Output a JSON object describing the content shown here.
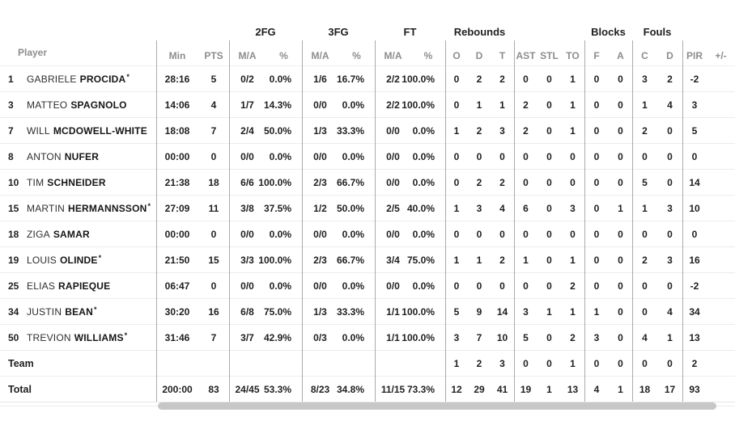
{
  "colors": {
    "text": "#1f1f1f",
    "muted_header": "#8d8d8d",
    "column_separator": "#ababab",
    "row_border": "#ececec",
    "scrollbar_thumb": "#c7c7c7"
  },
  "table": {
    "groups": [
      {
        "label": "2FG"
      },
      {
        "label": "3FG"
      },
      {
        "label": "FT"
      },
      {
        "label": "Rebounds"
      },
      {
        "label": "Blocks"
      },
      {
        "label": "Fouls"
      }
    ],
    "columns": [
      "Player",
      "Min",
      "PTS",
      "M/A",
      "%",
      "M/A",
      "%",
      "M/A",
      "%",
      "O",
      "D",
      "T",
      "AST",
      "STL",
      "TO",
      "F",
      "A",
      "C",
      "D",
      "PIR",
      "+/-"
    ],
    "rows": [
      {
        "num": "1",
        "first": "GABRIELE",
        "last": "PROCIDA",
        "star": "*",
        "cells": [
          "28:16",
          "5",
          "0/2",
          "0.0%",
          "1/6",
          "16.7%",
          "2/2",
          "100.0%",
          "0",
          "2",
          "2",
          "0",
          "0",
          "1",
          "0",
          "0",
          "3",
          "2",
          "-2",
          ""
        ]
      },
      {
        "num": "3",
        "first": "MATTEO",
        "last": "SPAGNOLO",
        "star": "",
        "cells": [
          "14:06",
          "4",
          "1/7",
          "14.3%",
          "0/0",
          "0.0%",
          "2/2",
          "100.0%",
          "0",
          "1",
          "1",
          "2",
          "0",
          "1",
          "0",
          "0",
          "1",
          "4",
          "3",
          ""
        ]
      },
      {
        "num": "7",
        "first": "WILL",
        "last": "MCDOWELL-WHITE",
        "star": "",
        "cells": [
          "18:08",
          "7",
          "2/4",
          "50.0%",
          "1/3",
          "33.3%",
          "0/0",
          "0.0%",
          "1",
          "2",
          "3",
          "2",
          "0",
          "1",
          "0",
          "0",
          "2",
          "0",
          "5",
          ""
        ]
      },
      {
        "num": "8",
        "first": "ANTON",
        "last": "NUFER",
        "star": "",
        "cells": [
          "00:00",
          "0",
          "0/0",
          "0.0%",
          "0/0",
          "0.0%",
          "0/0",
          "0.0%",
          "0",
          "0",
          "0",
          "0",
          "0",
          "0",
          "0",
          "0",
          "0",
          "0",
          "0",
          ""
        ]
      },
      {
        "num": "10",
        "first": "TIM",
        "last": "SCHNEIDER",
        "star": "",
        "cells": [
          "21:38",
          "18",
          "6/6",
          "100.0%",
          "2/3",
          "66.7%",
          "0/0",
          "0.0%",
          "0",
          "2",
          "2",
          "0",
          "0",
          "0",
          "0",
          "0",
          "5",
          "0",
          "14",
          ""
        ]
      },
      {
        "num": "15",
        "first": "MARTIN",
        "last": "HERMANNSSON",
        "star": "*",
        "cells": [
          "27:09",
          "11",
          "3/8",
          "37.5%",
          "1/2",
          "50.0%",
          "2/5",
          "40.0%",
          "1",
          "3",
          "4",
          "6",
          "0",
          "3",
          "0",
          "1",
          "1",
          "3",
          "10",
          ""
        ]
      },
      {
        "num": "18",
        "first": "ZIGA",
        "last": "SAMAR",
        "star": "",
        "cells": [
          "00:00",
          "0",
          "0/0",
          "0.0%",
          "0/0",
          "0.0%",
          "0/0",
          "0.0%",
          "0",
          "0",
          "0",
          "0",
          "0",
          "0",
          "0",
          "0",
          "0",
          "0",
          "0",
          ""
        ]
      },
      {
        "num": "19",
        "first": "LOUIS",
        "last": "OLINDE",
        "star": "*",
        "cells": [
          "21:50",
          "15",
          "3/3",
          "100.0%",
          "2/3",
          "66.7%",
          "3/4",
          "75.0%",
          "1",
          "1",
          "2",
          "1",
          "0",
          "1",
          "0",
          "0",
          "2",
          "3",
          "16",
          ""
        ]
      },
      {
        "num": "25",
        "first": "ELIAS",
        "last": "RAPIEQUE",
        "star": "",
        "cells": [
          "06:47",
          "0",
          "0/0",
          "0.0%",
          "0/0",
          "0.0%",
          "0/0",
          "0.0%",
          "0",
          "0",
          "0",
          "0",
          "0",
          "2",
          "0",
          "0",
          "0",
          "0",
          "-2",
          ""
        ]
      },
      {
        "num": "34",
        "first": "JUSTIN",
        "last": "BEAN",
        "star": "*",
        "cells": [
          "30:20",
          "16",
          "6/8",
          "75.0%",
          "1/3",
          "33.3%",
          "1/1",
          "100.0%",
          "5",
          "9",
          "14",
          "3",
          "1",
          "1",
          "1",
          "0",
          "0",
          "4",
          "34",
          ""
        ]
      },
      {
        "num": "50",
        "first": "TREVION",
        "last": "WILLIAMS",
        "star": "*",
        "cells": [
          "31:46",
          "7",
          "3/7",
          "42.9%",
          "0/3",
          "0.0%",
          "1/1",
          "100.0%",
          "3",
          "7",
          "10",
          "5",
          "0",
          "2",
          "3",
          "0",
          "4",
          "1",
          "13",
          ""
        ]
      },
      {
        "num": "",
        "first": "",
        "last": "Team",
        "star": "",
        "cells": [
          "",
          "",
          "",
          "",
          "",
          "",
          "",
          "",
          "1",
          "2",
          "3",
          "0",
          "0",
          "1",
          "0",
          "0",
          "0",
          "0",
          "2",
          ""
        ]
      },
      {
        "num": "",
        "first": "",
        "last": "Total",
        "star": "",
        "cells": [
          "200:00",
          "83",
          "24/45",
          "53.3%",
          "8/23",
          "34.8%",
          "11/15",
          "73.3%",
          "12",
          "29",
          "41",
          "19",
          "1",
          "13",
          "4",
          "1",
          "18",
          "17",
          "93",
          ""
        ]
      }
    ]
  }
}
